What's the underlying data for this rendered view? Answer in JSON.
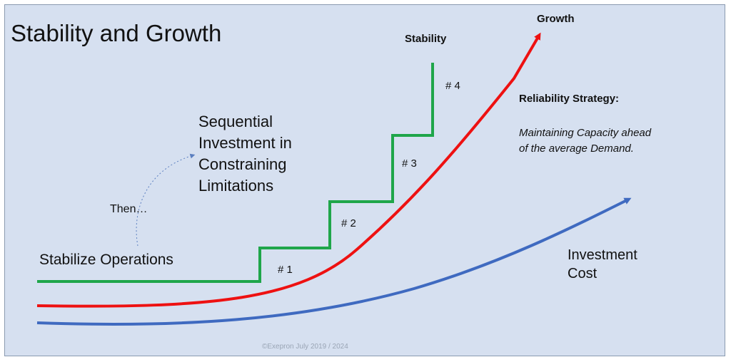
{
  "title": "Stability and Growth",
  "labels": {
    "sequential": "Sequential Investment in Constraining Limitations",
    "then": "Then…",
    "stabilize": "Stabilize Operations",
    "stability": "Stability",
    "growth": "Growth",
    "step1": "# 1",
    "step2": "# 2",
    "step3": "# 3",
    "step4": "# 4",
    "reliability_title": "Reliability Strategy:",
    "reliability_desc": "Maintaining Capacity ahead of the average Demand.",
    "investment": "Investment Cost"
  },
  "copyright": "©Exepron July 2019 / 2024",
  "colors": {
    "background": "#d6e0f0",
    "stability_line": "#1fa64a",
    "growth_line": "#ee1111",
    "investment_line": "#3f6ac0",
    "dashed_arrow": "#5b7fc0"
  }
}
